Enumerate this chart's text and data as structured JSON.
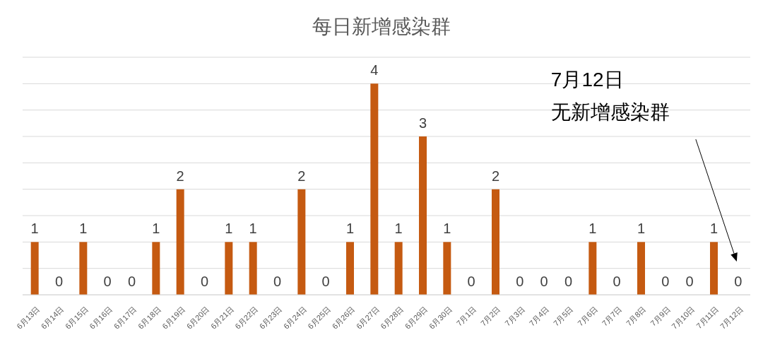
{
  "chart_data": {
    "type": "bar",
    "title": "每日新增感染群",
    "categories": [
      "6月13日",
      "6月14日",
      "6月15日",
      "6月16日",
      "6月17日",
      "6月18日",
      "6月19日",
      "6月20日",
      "6月21日",
      "6月22日",
      "6月23日",
      "6月24日",
      "6月25日",
      "6月26日",
      "6月27日",
      "6月28日",
      "6月29日",
      "6月30日",
      "7月1日",
      "7月2日",
      "7月3日",
      "7月4日",
      "7月5日",
      "7月6日",
      "7月7日",
      "7月8日",
      "7月9日",
      "7月10日",
      "7月11日",
      "7月12日"
    ],
    "values": [
      1,
      0,
      1,
      0,
      0,
      1,
      2,
      0,
      1,
      1,
      0,
      2,
      0,
      1,
      4,
      1,
      3,
      1,
      0,
      2,
      0,
      0,
      0,
      1,
      0,
      1,
      0,
      0,
      1,
      0
    ],
    "color": "#c55a11",
    "ylim": [
      0,
      4.5
    ],
    "yticks": [
      0,
      0.5,
      1,
      1.5,
      2,
      2.5,
      3,
      3.5,
      4,
      4.5
    ],
    "tick_labels": "x",
    "grid": "y",
    "data_labels": true,
    "annotations": [
      "7月12日无新增感染群"
    ]
  }
}
